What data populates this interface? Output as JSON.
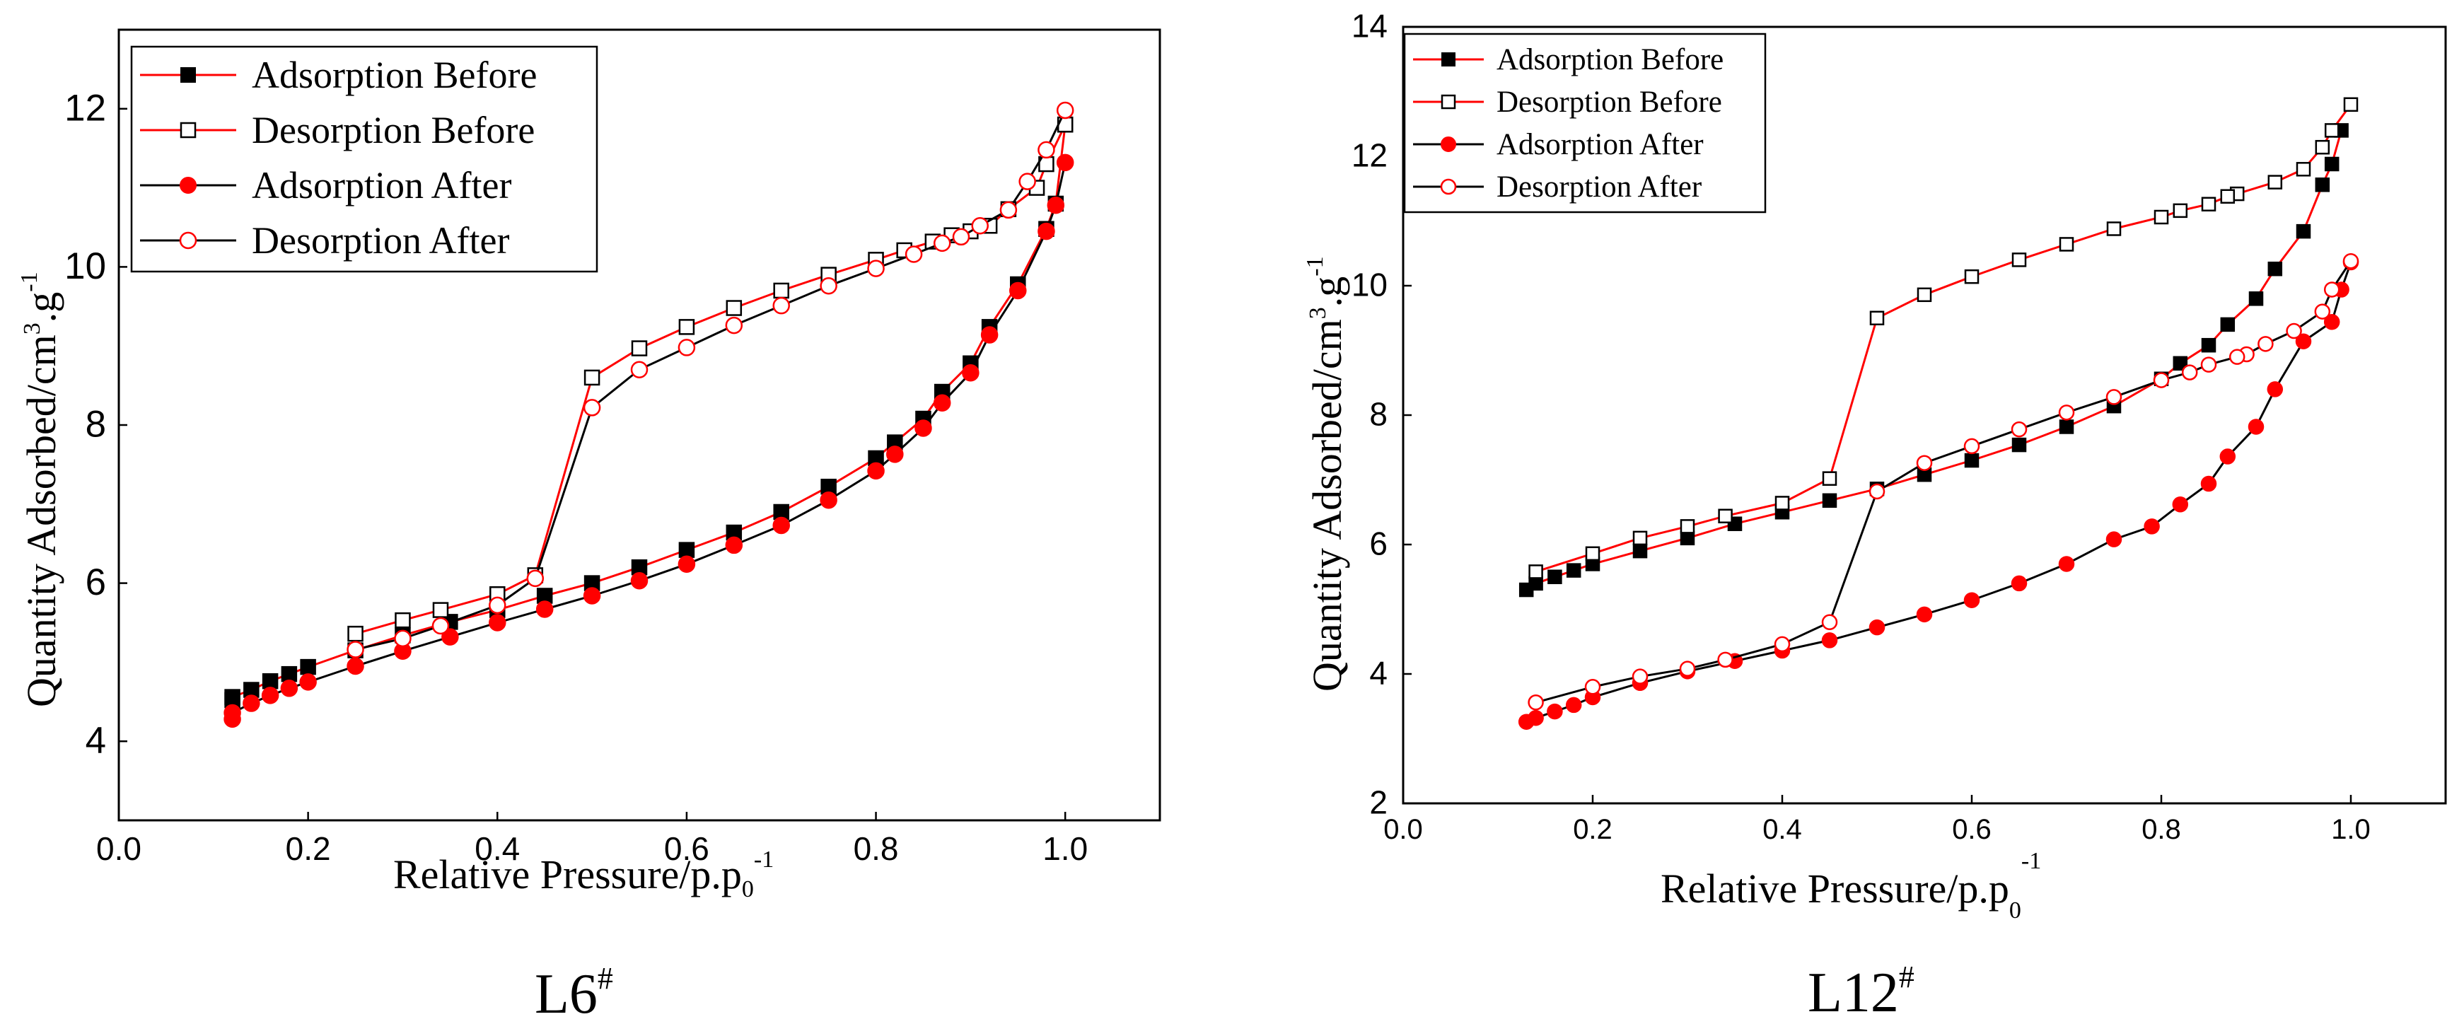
{
  "colors": {
    "black": "#000000",
    "red": "#ff0000",
    "white": "#ffffff"
  },
  "chart_data": [
    {
      "type": "line",
      "title": "",
      "panel_label": {
        "main": "L6",
        "sup": "#"
      },
      "xlabel": {
        "main": "Relative Pressure/p.p",
        "sub": "0",
        "sup": "-1"
      },
      "ylabel": {
        "main": "Quantity Adsorbed/cm",
        "sup1": "3",
        "mid": ".g",
        "sup2": "-1"
      },
      "xlim": [
        0.0,
        1.1
      ],
      "ylim": [
        3.0,
        13.0
      ],
      "xticks": [
        0.0,
        0.2,
        0.4,
        0.6,
        0.8,
        1.0
      ],
      "xtick_labels": [
        "0.0",
        "0.2",
        "0.4",
        "0.6",
        "0.8",
        "1.0"
      ],
      "yticks": [
        4,
        6,
        8,
        10,
        12
      ],
      "ytick_labels": [
        "4",
        "6",
        "8",
        "10",
        "12"
      ],
      "grid": false,
      "legend_position": "top-left",
      "series": [
        {
          "name": "Adsorption Before",
          "line_color": "#ff0000",
          "marker": "square",
          "marker_fill": "#000000",
          "marker_stroke": "#000000",
          "x": [
            0.12,
            0.12,
            0.14,
            0.16,
            0.18,
            0.2,
            0.25,
            0.3,
            0.35,
            0.4,
            0.45,
            0.5,
            0.55,
            0.6,
            0.65,
            0.7,
            0.75,
            0.8,
            0.82,
            0.85,
            0.87,
            0.9,
            0.92,
            0.95,
            0.98,
            0.99,
            1.0
          ],
          "y": [
            4.52,
            4.56,
            4.65,
            4.76,
            4.85,
            4.94,
            5.15,
            5.34,
            5.51,
            5.66,
            5.84,
            6.0,
            6.2,
            6.42,
            6.64,
            6.9,
            7.22,
            7.58,
            7.78,
            8.08,
            8.42,
            8.78,
            9.24,
            9.78,
            10.48,
            10.8,
            11.8
          ]
        },
        {
          "name": "Desorption Before",
          "line_color": "#ff0000",
          "marker": "square",
          "marker_fill": "#ffffff",
          "marker_stroke": "#000000",
          "x": [
            1.0,
            0.98,
            0.97,
            0.94,
            0.92,
            0.9,
            0.88,
            0.86,
            0.83,
            0.8,
            0.75,
            0.7,
            0.65,
            0.6,
            0.55,
            0.5,
            0.44,
            0.4,
            0.34,
            0.3,
            0.25
          ],
          "y": [
            11.8,
            11.3,
            11.0,
            10.73,
            10.52,
            10.45,
            10.4,
            10.32,
            10.21,
            10.09,
            9.9,
            9.7,
            9.48,
            9.24,
            8.97,
            8.6,
            6.1,
            5.86,
            5.66,
            5.53,
            5.36
          ]
        },
        {
          "name": "Adsorption After",
          "line_color": "#000000",
          "marker": "circle",
          "marker_fill": "#ff0000",
          "marker_stroke": "#ff0000",
          "x": [
            0.12,
            0.12,
            0.14,
            0.16,
            0.18,
            0.2,
            0.25,
            0.3,
            0.35,
            0.4,
            0.45,
            0.5,
            0.55,
            0.6,
            0.65,
            0.7,
            0.75,
            0.8,
            0.82,
            0.85,
            0.87,
            0.9,
            0.92,
            0.95,
            0.98,
            0.99,
            1.0
          ],
          "y": [
            4.28,
            4.36,
            4.48,
            4.58,
            4.67,
            4.75,
            4.95,
            5.14,
            5.32,
            5.5,
            5.67,
            5.84,
            6.03,
            6.24,
            6.48,
            6.73,
            7.05,
            7.42,
            7.63,
            7.96,
            8.28,
            8.66,
            9.14,
            9.7,
            10.45,
            10.78,
            11.32
          ]
        },
        {
          "name": "Desorption After",
          "line_color": "#000000",
          "marker": "circle",
          "marker_fill": "#ffffff",
          "marker_stroke": "#ff0000",
          "x": [
            1.0,
            0.98,
            0.96,
            0.94,
            0.91,
            0.89,
            0.87,
            0.84,
            0.8,
            0.75,
            0.7,
            0.65,
            0.6,
            0.55,
            0.5,
            0.44,
            0.4,
            0.34,
            0.3,
            0.25
          ],
          "y": [
            11.98,
            11.48,
            11.08,
            10.72,
            10.52,
            10.38,
            10.3,
            10.16,
            9.98,
            9.76,
            9.51,
            9.26,
            8.98,
            8.7,
            8.22,
            6.06,
            5.72,
            5.46,
            5.3,
            5.16
          ]
        }
      ]
    },
    {
      "type": "line",
      "title": "",
      "panel_label": {
        "main": "L12",
        "sup": "#"
      },
      "xlabel": {
        "main": "Relative Pressure/p.p",
        "sub": "0",
        "sup": "-1"
      },
      "ylabel": {
        "main": "Quantity Adsorbed/cm",
        "sup1": "3",
        "mid": ".g",
        "sup2": "-1"
      },
      "xlim": [
        0.0,
        1.1
      ],
      "ylim": [
        2.0,
        14.0
      ],
      "xticks": [
        0.0,
        0.2,
        0.4,
        0.6,
        0.8,
        1.0
      ],
      "xtick_labels": [
        "0.0",
        "0.2",
        "0.4",
        "0.6",
        "0.8",
        "1.0"
      ],
      "yticks": [
        2,
        4,
        6,
        8,
        10,
        12,
        14
      ],
      "ytick_labels": [
        "2",
        "4",
        "6",
        "8",
        "10",
        "12",
        "14"
      ],
      "grid": false,
      "legend_position": "top-left",
      "series": [
        {
          "name": "Adsorption Before",
          "line_color": "#ff0000",
          "marker": "square",
          "marker_fill": "#000000",
          "marker_stroke": "#000000",
          "x": [
            0.13,
            0.14,
            0.16,
            0.18,
            0.2,
            0.25,
            0.3,
            0.35,
            0.4,
            0.45,
            0.5,
            0.55,
            0.6,
            0.65,
            0.7,
            0.75,
            0.8,
            0.82,
            0.85,
            0.87,
            0.9,
            0.92,
            0.95,
            0.97,
            0.98,
            0.99
          ],
          "y": [
            5.3,
            5.4,
            5.5,
            5.6,
            5.7,
            5.9,
            6.1,
            6.32,
            6.5,
            6.68,
            6.86,
            7.08,
            7.3,
            7.54,
            7.82,
            8.14,
            8.56,
            8.8,
            9.08,
            9.4,
            9.8,
            10.26,
            10.84,
            11.56,
            11.88,
            12.4
          ]
        },
        {
          "name": "Desorption Before",
          "line_color": "#ff0000",
          "marker": "square",
          "marker_fill": "#ffffff",
          "marker_stroke": "#000000",
          "x": [
            1.0,
            0.98,
            0.97,
            0.95,
            0.92,
            0.88,
            0.87,
            0.85,
            0.82,
            0.8,
            0.75,
            0.7,
            0.65,
            0.6,
            0.55,
            0.5,
            0.45,
            0.4,
            0.34,
            0.3,
            0.25,
            0.2,
            0.14
          ],
          "y": [
            12.8,
            12.4,
            12.14,
            11.8,
            11.6,
            11.42,
            11.38,
            11.26,
            11.16,
            11.06,
            10.88,
            10.64,
            10.4,
            10.14,
            9.86,
            9.5,
            7.02,
            6.64,
            6.44,
            6.28,
            6.1,
            5.86,
            5.58
          ]
        },
        {
          "name": "Adsorption After",
          "line_color": "#000000",
          "marker": "circle",
          "marker_fill": "#ff0000",
          "marker_stroke": "#ff0000",
          "x": [
            0.13,
            0.14,
            0.16,
            0.18,
            0.2,
            0.25,
            0.3,
            0.35,
            0.4,
            0.45,
            0.5,
            0.55,
            0.6,
            0.65,
            0.7,
            0.75,
            0.79,
            0.82,
            0.85,
            0.87,
            0.9,
            0.92,
            0.95,
            0.98,
            0.99,
            1.0
          ],
          "y": [
            3.26,
            3.32,
            3.42,
            3.52,
            3.64,
            3.86,
            4.04,
            4.2,
            4.36,
            4.52,
            4.72,
            4.92,
            5.14,
            5.4,
            5.7,
            6.08,
            6.28,
            6.62,
            6.94,
            7.36,
            7.82,
            8.4,
            9.14,
            9.44,
            9.94,
            10.36
          ]
        },
        {
          "name": "Desorption After",
          "line_color": "#000000",
          "marker": "circle",
          "marker_fill": "#ffffff",
          "marker_stroke": "#ff0000",
          "x": [
            1.0,
            0.98,
            0.97,
            0.94,
            0.91,
            0.89,
            0.88,
            0.85,
            0.83,
            0.8,
            0.75,
            0.7,
            0.65,
            0.6,
            0.55,
            0.5,
            0.45,
            0.4,
            0.34,
            0.3,
            0.25,
            0.2,
            0.14
          ],
          "y": [
            10.38,
            9.94,
            9.6,
            9.3,
            9.1,
            8.94,
            8.9,
            8.78,
            8.66,
            8.54,
            8.28,
            8.04,
            7.78,
            7.52,
            7.26,
            6.82,
            4.8,
            4.46,
            4.22,
            4.08,
            3.96,
            3.8,
            3.56
          ]
        }
      ]
    }
  ]
}
